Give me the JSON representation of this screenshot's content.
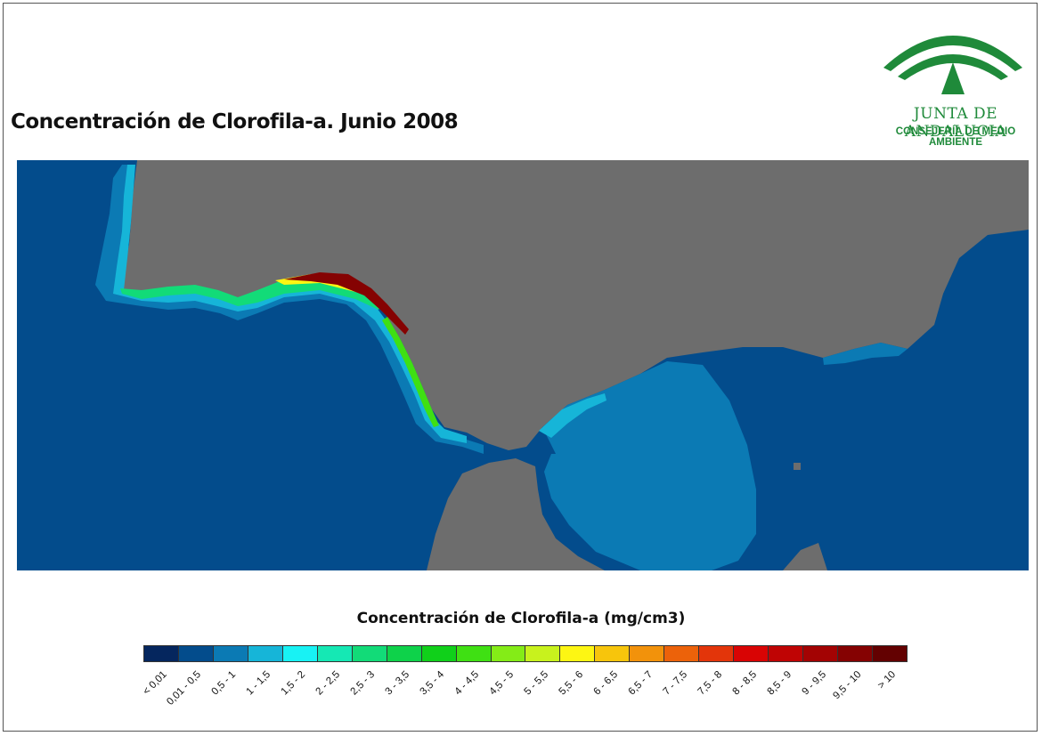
{
  "title": "Concentración de Clorofila-a. Junio 2008",
  "logo": {
    "line1": "JUNTA DE ANDALUCIA",
    "line2": "CONSEJERÍA DE MEDIO AMBIENTE",
    "color": "#1f8a3a"
  },
  "colors": {
    "land": "#6d6d6d",
    "ocean": "#034c8c",
    "frame": "#555555"
  },
  "legend": {
    "title": "Concentración de Clorofila-a (mg/cm3)",
    "classes": [
      {
        "label": "< 0,01",
        "color": "#05265e"
      },
      {
        "label": "0,01 - 0,5",
        "color": "#034c8c"
      },
      {
        "label": "0,5 - 1",
        "color": "#0b7ab4"
      },
      {
        "label": "1 - 1,5",
        "color": "#16b5d8"
      },
      {
        "label": "1,5 - 2",
        "color": "#18f2f4"
      },
      {
        "label": "2 - 2,5",
        "color": "#15e8b4"
      },
      {
        "label": "2,5 - 3",
        "color": "#12db78"
      },
      {
        "label": "3 - 3,5",
        "color": "#0ed24a"
      },
      {
        "label": "3,5 - 4",
        "color": "#10d01a"
      },
      {
        "label": "4 - 4,5",
        "color": "#3fe013"
      },
      {
        "label": "4,5 - 5",
        "color": "#84ec17"
      },
      {
        "label": "5 - 5,5",
        "color": "#c8f21d"
      },
      {
        "label": "5,5 - 6",
        "color": "#fdf613"
      },
      {
        "label": "6 - 6,5",
        "color": "#f7c50c"
      },
      {
        "label": "6,5 - 7",
        "color": "#f2920b"
      },
      {
        "label": "7 - 7,5",
        "color": "#ec620a"
      },
      {
        "label": "7,5 - 8",
        "color": "#e3350a"
      },
      {
        "label": "8 - 8,5",
        "color": "#d90404"
      },
      {
        "label": "8,5 - 9",
        "color": "#bf0404"
      },
      {
        "label": "9 - 9,5",
        "color": "#a30303"
      },
      {
        "label": "9,5 - 10",
        "color": "#850202"
      },
      {
        "label": "> 10",
        "color": "#630101"
      }
    ]
  }
}
